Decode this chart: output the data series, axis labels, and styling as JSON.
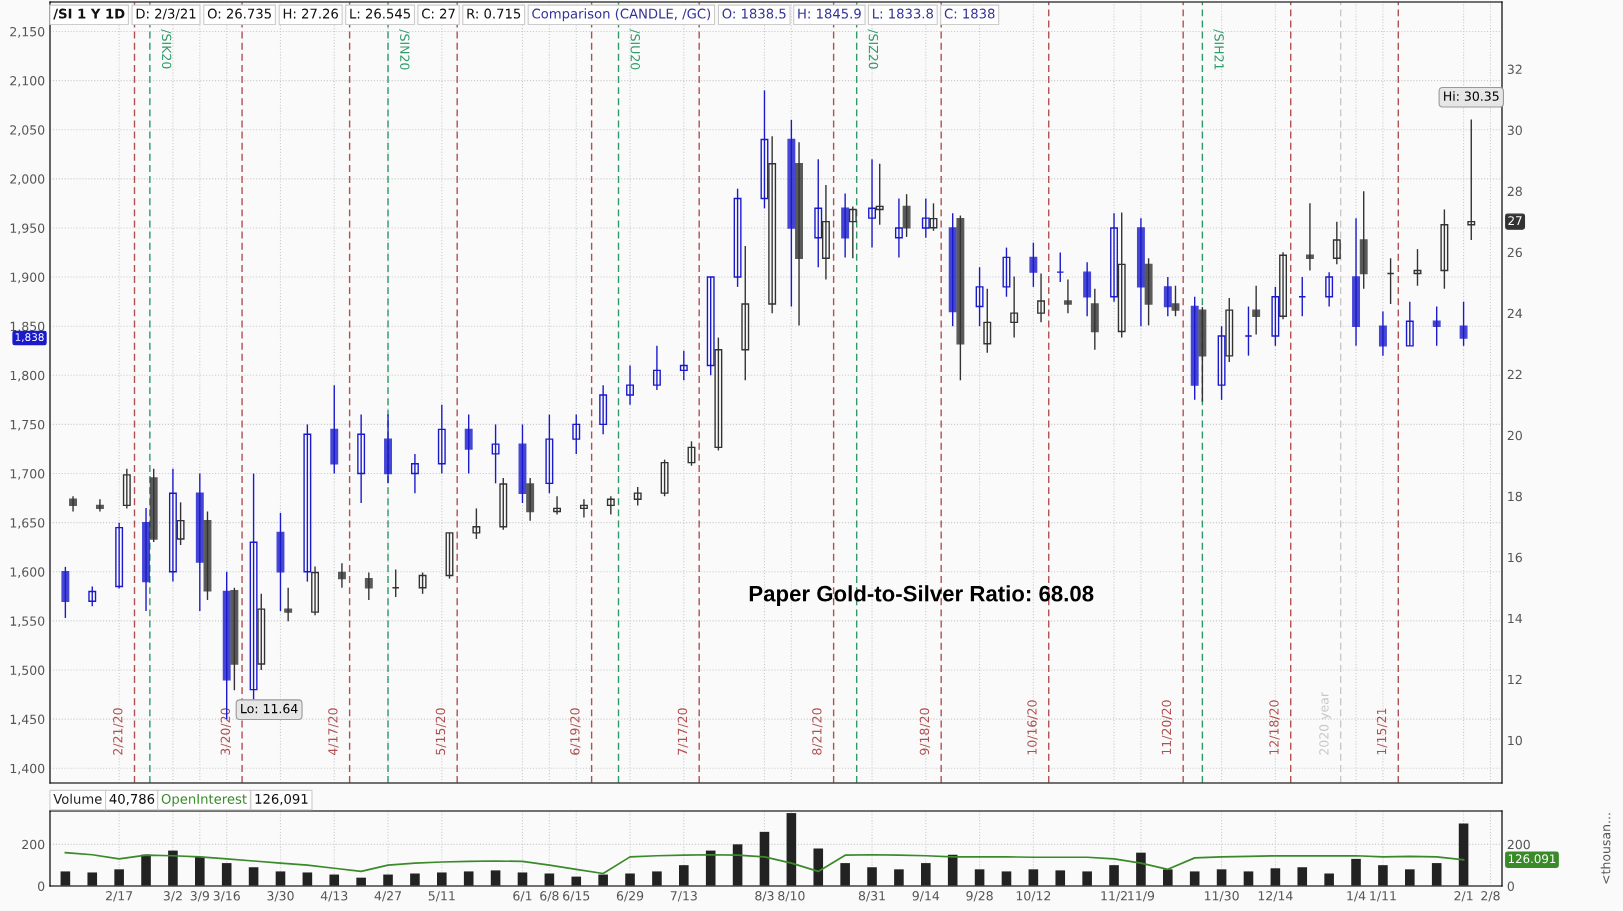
{
  "chart_data": [
    {
      "type": "candlestick",
      "title": "/SI 1 Y 1D",
      "x": [
        "2020-02-03",
        "2020-02-10",
        "2020-02-17",
        "2020-02-24",
        "2020-03-02",
        "2020-03-09",
        "2020-03-16",
        "2020-03-23",
        "2020-03-30",
        "2020-04-06",
        "2020-04-13",
        "2020-04-20",
        "2020-04-27",
        "2020-05-04",
        "2020-05-11",
        "2020-05-18",
        "2020-05-25",
        "2020-06-01",
        "2020-06-08",
        "2020-06-15",
        "2020-06-22",
        "2020-06-29",
        "2020-07-06",
        "2020-07-13",
        "2020-07-20",
        "2020-07-27",
        "2020-08-03",
        "2020-08-10",
        "2020-08-17",
        "2020-08-24",
        "2020-08-31",
        "2020-09-07",
        "2020-09-14",
        "2020-09-21",
        "2020-09-28",
        "2020-10-05",
        "2020-10-12",
        "2020-10-19",
        "2020-10-26",
        "2020-11-02",
        "2020-11-09",
        "2020-11-16",
        "2020-11-23",
        "2020-11-30",
        "2020-12-07",
        "2020-12-14",
        "2020-12-21",
        "2020-12-28",
        "2021-01-04",
        "2021-01-11",
        "2021-01-18",
        "2021-01-25",
        "2021-02-01"
      ],
      "series": [
        {
          "color": "#1a1acc",
          "ohlc": [
            [
              1600,
              1605,
              1553,
              1570
            ],
            [
              1570,
              1585,
              1565,
              1580
            ],
            [
              1585,
              1650,
              1583,
              1645
            ],
            [
              1650,
              1665,
              1560,
              1590
            ],
            [
              1600,
              1705,
              1590,
              1680
            ],
            [
              1680,
              1700,
              1560,
              1610
            ],
            [
              1580,
              1600,
              1450,
              1490
            ],
            [
              1480,
              1700,
              1470,
              1630
            ],
            [
              1640,
              1660,
              1560,
              1600
            ],
            [
              1600,
              1750,
              1590,
              1740
            ],
            [
              1745,
              1790,
              1700,
              1710
            ],
            [
              1700,
              1760,
              1670,
              1740
            ],
            [
              1735,
              1760,
              1690,
              1700
            ],
            [
              1700,
              1720,
              1680,
              1710
            ],
            [
              1710,
              1770,
              1700,
              1745
            ],
            [
              1745,
              1760,
              1700,
              1725
            ],
            [
              1720,
              1750,
              1690,
              1730
            ],
            [
              1730,
              1750,
              1670,
              1680
            ],
            [
              1690,
              1760,
              1680,
              1735
            ],
            [
              1735,
              1760,
              1720,
              1750
            ],
            [
              1750,
              1790,
              1740,
              1780
            ],
            [
              1780,
              1810,
              1770,
              1790
            ],
            [
              1790,
              1830,
              1785,
              1805
            ],
            [
              1805,
              1825,
              1795,
              1810
            ],
            [
              1810,
              1900,
              1800,
              1900
            ],
            [
              1900,
              1990,
              1890,
              1980
            ],
            [
              1980,
              2090,
              1970,
              2040
            ],
            [
              2040,
              2060,
              1870,
              1950
            ],
            [
              1940,
              2020,
              1910,
              1970
            ],
            [
              1970,
              1985,
              1920,
              1940
            ],
            [
              1960,
              2020,
              1930,
              1970
            ],
            [
              1940,
              1980,
              1920,
              1950
            ],
            [
              1950,
              1980,
              1940,
              1960
            ],
            [
              1950,
              1965,
              1850,
              1865
            ],
            [
              1870,
              1910,
              1850,
              1890
            ],
            [
              1890,
              1930,
              1880,
              1920
            ],
            [
              1920,
              1935,
              1890,
              1905
            ],
            [
              1905,
              1925,
              1895,
              1905
            ],
            [
              1905,
              1915,
              1860,
              1880
            ],
            [
              1880,
              1965,
              1875,
              1950
            ],
            [
              1950,
              1960,
              1850,
              1890
            ],
            [
              1890,
              1900,
              1860,
              1870
            ],
            [
              1870,
              1880,
              1775,
              1790
            ],
            [
              1790,
              1850,
              1775,
              1840
            ],
            [
              1840,
              1870,
              1820,
              1840
            ],
            [
              1840,
              1890,
              1830,
              1880
            ],
            [
              1880,
              1900,
              1860,
              1880
            ],
            [
              1880,
              1905,
              1870,
              1900
            ],
            [
              1900,
              1960,
              1830,
              1850
            ],
            [
              1850,
              1865,
              1820,
              1830
            ],
            [
              1830,
              1875,
              1830,
              1855
            ],
            [
              1855,
              1870,
              1830,
              1850
            ],
            [
              1850,
              1875,
              1830,
              1838
            ]
          ]
        },
        {
          "color": "#333333",
          "axis": "y2",
          "x": [
            "2020-02-05",
            "2020-02-12",
            "2020-02-19",
            "2020-02-26",
            "2020-03-04",
            "2020-03-11",
            "2020-03-18",
            "2020-03-25",
            "2020-04-01",
            "2020-04-08",
            "2020-04-15",
            "2020-04-22",
            "2020-04-29",
            "2020-05-06",
            "2020-05-13",
            "2020-05-20",
            "2020-05-27",
            "2020-06-03",
            "2020-06-10",
            "2020-06-17",
            "2020-06-24",
            "2020-07-01",
            "2020-07-08",
            "2020-07-15",
            "2020-07-22",
            "2020-07-29",
            "2020-08-05",
            "2020-08-12",
            "2020-08-19",
            "2020-08-26",
            "2020-09-02",
            "2020-09-09",
            "2020-09-16",
            "2020-09-23",
            "2020-09-30",
            "2020-10-07",
            "2020-10-14",
            "2020-10-21",
            "2020-10-28",
            "2020-11-04",
            "2020-11-11",
            "2020-11-18",
            "2020-11-25",
            "2020-12-02",
            "2020-12-09",
            "2020-12-16",
            "2020-12-23",
            "2020-12-30",
            "2021-01-06",
            "2021-01-13",
            "2021-01-20",
            "2021-01-27",
            "2021-02-03"
          ],
          "ohlc": [
            [
              17.9,
              18.0,
              17.5,
              17.7
            ],
            [
              17.7,
              17.9,
              17.5,
              17.6
            ],
            [
              17.7,
              18.9,
              17.6,
              18.7
            ],
            [
              18.6,
              18.9,
              16.5,
              16.6
            ],
            [
              16.6,
              17.8,
              16.4,
              17.2
            ],
            [
              17.2,
              17.5,
              14.6,
              14.9
            ],
            [
              14.9,
              15.0,
              11.64,
              12.5
            ],
            [
              12.5,
              14.8,
              12.3,
              14.3
            ],
            [
              14.3,
              15.0,
              13.9,
              14.2
            ],
            [
              14.2,
              15.7,
              14.1,
              15.5
            ],
            [
              15.5,
              15.8,
              15.0,
              15.3
            ],
            [
              15.3,
              15.5,
              14.6,
              15.0
            ],
            [
              15.0,
              15.6,
              14.7,
              15.0
            ],
            [
              15.0,
              15.5,
              14.8,
              15.4
            ],
            [
              15.4,
              16.8,
              15.3,
              16.8
            ],
            [
              16.8,
              17.6,
              16.6,
              17.0
            ],
            [
              17.0,
              18.6,
              16.9,
              18.4
            ],
            [
              18.4,
              18.6,
              17.2,
              17.5
            ],
            [
              17.5,
              18.0,
              17.4,
              17.6
            ],
            [
              17.6,
              17.9,
              17.3,
              17.7
            ],
            [
              17.7,
              18.0,
              17.4,
              17.9
            ],
            [
              17.9,
              18.3,
              17.7,
              18.1
            ],
            [
              18.1,
              19.2,
              18.0,
              19.1
            ],
            [
              19.1,
              19.8,
              19.0,
              19.6
            ],
            [
              19.6,
              23.2,
              19.5,
              22.8
            ],
            [
              22.8,
              26.2,
              21.8,
              24.3
            ],
            [
              24.3,
              29.8,
              24.0,
              28.9
            ],
            [
              28.9,
              29.6,
              23.6,
              25.8
            ],
            [
              25.8,
              28.2,
              25.1,
              27.0
            ],
            [
              27.0,
              27.5,
              25.8,
              27.4
            ],
            [
              27.4,
              28.9,
              26.9,
              27.5
            ],
            [
              27.5,
              27.9,
              26.5,
              26.8
            ],
            [
              26.8,
              27.6,
              26.7,
              27.1
            ],
            [
              27.1,
              27.2,
              21.8,
              23.0
            ],
            [
              23.0,
              24.8,
              22.7,
              23.7
            ],
            [
              23.7,
              25.2,
              23.2,
              24.0
            ],
            [
              24.0,
              25.3,
              23.7,
              24.4
            ],
            [
              24.4,
              25.1,
              24.0,
              24.3
            ],
            [
              24.3,
              24.8,
              22.8,
              23.4
            ],
            [
              23.4,
              27.3,
              23.2,
              25.6
            ],
            [
              25.6,
              25.8,
              23.6,
              24.3
            ],
            [
              24.3,
              24.9,
              23.9,
              24.1
            ],
            [
              24.1,
              24.2,
              21.1,
              22.6
            ],
            [
              22.6,
              24.5,
              22.4,
              24.1
            ],
            [
              24.1,
              24.9,
              23.3,
              23.9
            ],
            [
              23.9,
              26.0,
              23.8,
              25.9
            ],
            [
              25.9,
              27.6,
              25.4,
              25.8
            ],
            [
              25.8,
              27.0,
              25.6,
              26.4
            ],
            [
              26.4,
              28.0,
              24.8,
              25.3
            ],
            [
              25.3,
              25.8,
              24.3,
              25.3
            ],
            [
              25.3,
              26.1,
              24.9,
              25.4
            ],
            [
              25.4,
              27.4,
              24.8,
              26.9
            ],
            [
              26.9,
              30.35,
              26.4,
              27.0
            ]
          ]
        }
      ],
      "xlim": [
        "2020-01-30",
        "2021-02-11"
      ],
      "xticks": [
        {
          "value": "2020-02-17",
          "label": null
        },
        {
          "value": "2020-03-02",
          "label": null
        },
        {
          "value": "2020-03-09",
          "label": null
        },
        {
          "value": "2020-03-16",
          "label": null
        },
        {
          "value": "2020-03-30",
          "label": null
        },
        {
          "value": "2020-04-13",
          "label": null
        },
        {
          "value": "2020-04-27",
          "label": null
        },
        {
          "value": "2020-05-11",
          "label": null
        },
        {
          "value": "2020-06-01",
          "label": null
        },
        {
          "value": "2020-06-08",
          "label": null
        },
        {
          "value": "2020-06-15",
          "label": null
        },
        {
          "value": "2020-06-29",
          "label": null
        },
        {
          "value": "2020-07-13",
          "label": null
        },
        {
          "value": "2020-08-03",
          "label": null
        },
        {
          "value": "2020-08-10",
          "label": null
        },
        {
          "value": "2020-08-31",
          "label": null
        },
        {
          "value": "2020-09-14",
          "label": null
        },
        {
          "value": "2020-09-28",
          "label": null
        },
        {
          "value": "2020-10-12",
          "label": null
        },
        {
          "value": "2020-11-02",
          "label": null
        },
        {
          "value": "2020-11-09",
          "label": null
        },
        {
          "value": "2020-11-30",
          "label": null
        },
        {
          "value": "2020-12-14",
          "label": null
        },
        {
          "value": "2021-01-04",
          "label": null
        },
        {
          "value": "2021-01-11",
          "label": null
        },
        {
          "value": "2021-02-01",
          "label": null
        },
        {
          "value": "2021-02-08",
          "label": null
        }
      ],
      "ylim": [
        1385,
        2180
      ],
      "yticks": [
        {
          "value": 1400,
          "label": "1,400"
        },
        {
          "value": 1450,
          "label": "1,450"
        },
        {
          "value": 1500,
          "label": "1,500"
        },
        {
          "value": 1550,
          "label": "1,550"
        },
        {
          "value": 1600,
          "label": "1,600"
        },
        {
          "value": 1650,
          "label": "1,650"
        },
        {
          "value": 1700,
          "label": "1,700"
        },
        {
          "value": 1750,
          "label": "1,750"
        },
        {
          "value": 1800,
          "label": "1,800"
        },
        {
          "value": 1850,
          "label": "1,850"
        },
        {
          "value": 1900,
          "label": "1,900"
        },
        {
          "value": 1950,
          "label": "1,950"
        },
        {
          "value": 2000,
          "label": "2,000"
        },
        {
          "value": 2050,
          "label": "2,050"
        },
        {
          "value": 2100,
          "label": "2,100"
        },
        {
          "value": 2150,
          "label": "2,150"
        }
      ],
      "y2lim": [
        8.6,
        34.2
      ],
      "y2ticks": [
        10,
        12,
        14,
        16,
        18,
        20,
        22,
        24,
        26,
        28,
        30,
        32
      ],
      "tick_labels": "y",
      "grid": true,
      "ref_lines": [
        {
          "axis": "x",
          "value": "2020-02-21",
          "label": "2/21/20",
          "color": "#b05050",
          "line_style": "dashed"
        },
        {
          "axis": "x",
          "value": "2020-03-20",
          "label": "3/20/20",
          "color": "#b05050",
          "line_style": "dashed"
        },
        {
          "axis": "x",
          "value": "2020-04-17",
          "label": "4/17/20",
          "color": "#b05050",
          "line_style": "dashed"
        },
        {
          "axis": "x",
          "value": "2020-05-15",
          "label": "5/15/20",
          "color": "#b05050",
          "line_style": "dashed"
        },
        {
          "axis": "x",
          "value": "2020-06-19",
          "label": "6/19/20",
          "color": "#b05050",
          "line_style": "dashed"
        },
        {
          "axis": "x",
          "value": "2020-07-17",
          "label": "7/17/20",
          "color": "#b05050",
          "line_style": "dashed"
        },
        {
          "axis": "x",
          "value": "2020-08-21",
          "label": "8/21/20",
          "color": "#b05050",
          "line_style": "dashed"
        },
        {
          "axis": "x",
          "value": "2020-09-18",
          "label": "9/18/20",
          "color": "#b05050",
          "line_style": "dashed"
        },
        {
          "axis": "x",
          "value": "2020-10-16",
          "label": "10/16/20",
          "color": "#b05050",
          "line_style": "dashed"
        },
        {
          "axis": "x",
          "value": "2020-11-20",
          "label": "11/20/20",
          "color": "#b05050",
          "line_style": "dashed"
        },
        {
          "axis": "x",
          "value": "2020-12-18",
          "label": "12/18/20",
          "color": "#b05050",
          "line_style": "dashed"
        },
        {
          "axis": "x",
          "value": "2021-01-15",
          "label": "1/15/21",
          "color": "#b05050",
          "line_style": "dashed"
        },
        {
          "axis": "x",
          "value": "2020-02-25",
          "label": "/SIK20",
          "color": "#2e9a6a",
          "line_style": "dashed"
        },
        {
          "axis": "x",
          "value": "2020-04-27",
          "label": "/SIN20",
          "color": "#2e9a6a",
          "line_style": "dashed"
        },
        {
          "axis": "x",
          "value": "2020-06-26",
          "label": "/SIU20",
          "color": "#2e9a6a",
          "line_style": "dashed"
        },
        {
          "axis": "x",
          "value": "2020-08-27",
          "label": "/SIZ20",
          "color": "#2e9a6a",
          "line_style": "dashed"
        },
        {
          "axis": "x",
          "value": "2020-11-25",
          "label": "/SIH21",
          "color": "#2e9a6a",
          "line_style": "dashed"
        },
        {
          "axis": "x",
          "value": "2020-12-31",
          "label": "2020 year",
          "color": "#c8c8c8",
          "line_style": "dashed"
        }
      ],
      "annotations": [
        "D: 2/3/21",
        "O: 26.735",
        "H: 27.26",
        "L: 26.545",
        "C: 27",
        "R: 0.715",
        "Comparison (CANDLE, /GC)",
        "O: 1838.5",
        "H: 1845.9",
        "L: 1833.8",
        "C: 1838",
        "1,838",
        "27",
        "Hi: 30.35",
        "Lo: 11.64",
        "Paper Gold-to-Silver Ratio: 68.08"
      ]
    },
    {
      "type": "bar",
      "x": [
        "2020-02-03",
        "2020-02-10",
        "2020-02-17",
        "2020-02-24",
        "2020-03-02",
        "2020-03-09",
        "2020-03-16",
        "2020-03-23",
        "2020-03-30",
        "2020-04-06",
        "2020-04-13",
        "2020-04-20",
        "2020-04-27",
        "2020-05-04",
        "2020-05-11",
        "2020-05-18",
        "2020-05-25",
        "2020-06-01",
        "2020-06-08",
        "2020-06-15",
        "2020-06-22",
        "2020-06-29",
        "2020-07-06",
        "2020-07-13",
        "2020-07-20",
        "2020-07-27",
        "2020-08-03",
        "2020-08-10",
        "2020-08-17",
        "2020-08-24",
        "2020-08-31",
        "2020-09-07",
        "2020-09-14",
        "2020-09-21",
        "2020-09-28",
        "2020-10-05",
        "2020-10-12",
        "2020-10-19",
        "2020-10-26",
        "2020-11-02",
        "2020-11-09",
        "2020-11-16",
        "2020-11-23",
        "2020-11-30",
        "2020-12-07",
        "2020-12-14",
        "2020-12-21",
        "2020-12-28",
        "2021-01-04",
        "2021-01-11",
        "2021-01-18",
        "2021-01-25",
        "2021-02-01"
      ],
      "series": [
        {
          "name": "Volume",
          "color": "#222222",
          "values": [
            70,
            65,
            80,
            150,
            170,
            140,
            110,
            90,
            70,
            65,
            55,
            40,
            55,
            60,
            65,
            70,
            75,
            65,
            60,
            45,
            55,
            60,
            70,
            100,
            170,
            200,
            260,
            350,
            180,
            110,
            90,
            80,
            110,
            150,
            80,
            70,
            80,
            75,
            70,
            100,
            160,
            80,
            70,
            80,
            70,
            85,
            90,
            60,
            130,
            100,
            80,
            110,
            300
          ]
        },
        {
          "name": "OpenInterest",
          "type": "line",
          "axis": "y2",
          "color": "#3a8a2a",
          "values": [
            160,
            150,
            130,
            148,
            145,
            140,
            130,
            120,
            110,
            100,
            85,
            70,
            100,
            110,
            115,
            118,
            120,
            118,
            100,
            80,
            60,
            140,
            145,
            148,
            150,
            148,
            140,
            110,
            70,
            148,
            150,
            148,
            145,
            140,
            140,
            140,
            138,
            138,
            138,
            130,
            110,
            80,
            135,
            140,
            142,
            145,
            145,
            145,
            145,
            140,
            142,
            140,
            126.091
          ]
        }
      ],
      "xlim": [
        "2020-01-30",
        "2021-02-11"
      ],
      "xticks": [
        {
          "value": "2020-02-17",
          "label": "2/17"
        },
        {
          "value": "2020-03-02",
          "label": "3/2"
        },
        {
          "value": "2020-03-09",
          "label": "3/9"
        },
        {
          "value": "2020-03-16",
          "label": "3/16"
        },
        {
          "value": "2020-03-30",
          "label": "3/30"
        },
        {
          "value": "2020-04-13",
          "label": "4/13"
        },
        {
          "value": "2020-04-27",
          "label": "4/27"
        },
        {
          "value": "2020-05-11",
          "label": "5/11"
        },
        {
          "value": "2020-06-01",
          "label": "6/1"
        },
        {
          "value": "2020-06-08",
          "label": "6/8"
        },
        {
          "value": "2020-06-15",
          "label": "6/15"
        },
        {
          "value": "2020-06-29",
          "label": "6/29"
        },
        {
          "value": "2020-07-13",
          "label": "7/13"
        },
        {
          "value": "2020-08-03",
          "label": "8/3"
        },
        {
          "value": "2020-08-10",
          "label": "8/10"
        },
        {
          "value": "2020-08-31",
          "label": "8/31"
        },
        {
          "value": "2020-09-14",
          "label": "9/14"
        },
        {
          "value": "2020-09-28",
          "label": "9/28"
        },
        {
          "value": "2020-10-12",
          "label": "10/12"
        },
        {
          "value": "2020-11-02",
          "label": "11/2"
        },
        {
          "value": "2020-11-09",
          "label": "11/9"
        },
        {
          "value": "2020-11-30",
          "label": "11/30"
        },
        {
          "value": "2020-12-14",
          "label": "12/14"
        },
        {
          "value": "2021-01-04",
          "label": "1/4"
        },
        {
          "value": "2021-01-11",
          "label": "1/11"
        },
        {
          "value": "2021-02-01",
          "label": "2/1"
        },
        {
          "value": "2021-02-08",
          "label": "2/8"
        }
      ],
      "ylim": [
        0,
        360
      ],
      "yticks": [
        0,
        200
      ],
      "y2lim": [
        0,
        360
      ],
      "y2ticks": [
        0,
        200
      ],
      "y2label": "<thousan...",
      "grid": true,
      "legend": "top left",
      "annotations": [
        "40,786",
        "126,091",
        "126.091"
      ]
    }
  ]
}
